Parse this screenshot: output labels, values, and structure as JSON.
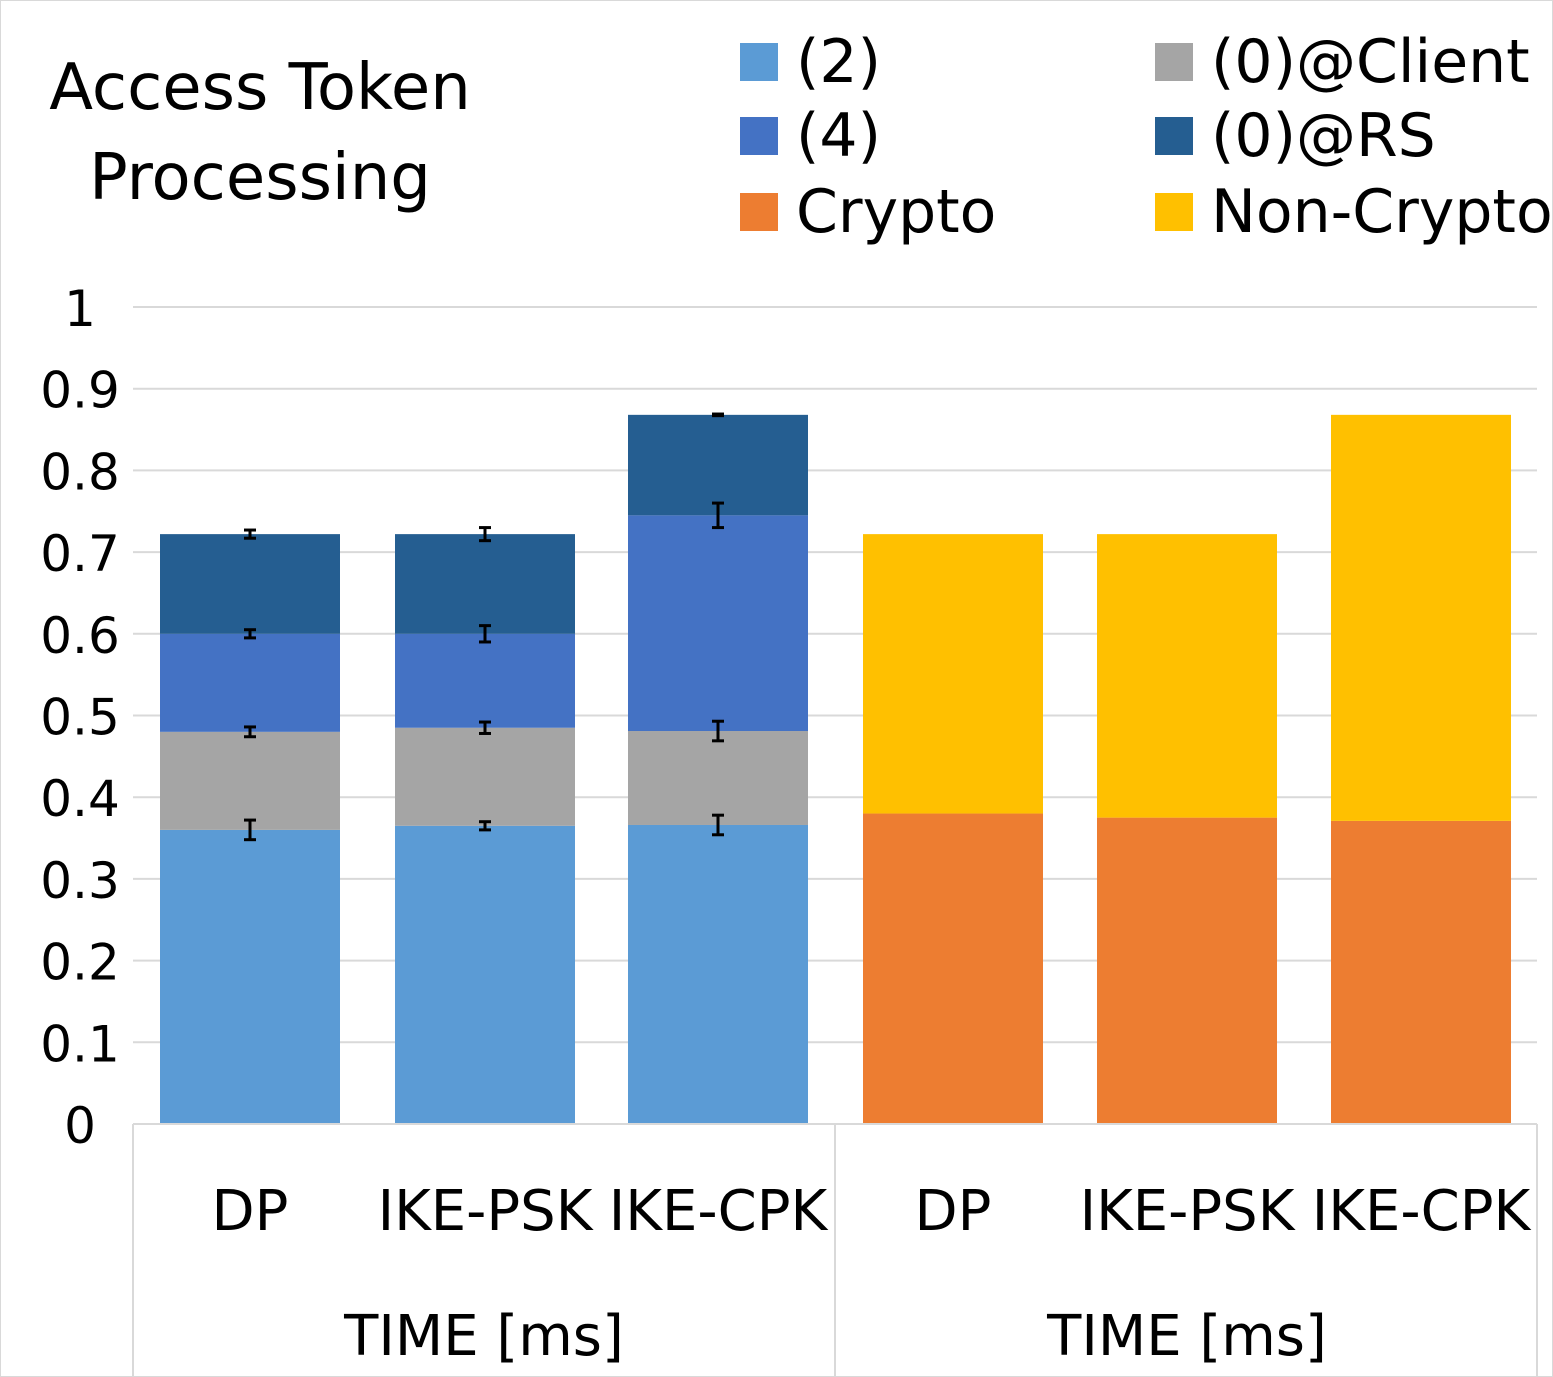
{
  "chart_data": {
    "type": "bar",
    "stacked": true,
    "title": [
      "Access Token",
      "Processing"
    ],
    "ylim": [
      0,
      1
    ],
    "yticks": [
      "0",
      "0.1",
      "0.2",
      "0.3",
      "0.4",
      "0.5",
      "0.6",
      "0.7",
      "0.8",
      "0.9",
      "1"
    ],
    "grid": true,
    "legend_position": "top-right",
    "legend": [
      {
        "key": "s2",
        "label": "(2)",
        "color": "#5b9bd5"
      },
      {
        "key": "c0",
        "label": "(0)@Client",
        "color": "#a5a5a5"
      },
      {
        "key": "s4",
        "label": "(4)",
        "color": "#4472c4"
      },
      {
        "key": "rs0",
        "label": "(0)@RS",
        "color": "#255e91"
      },
      {
        "key": "crypto",
        "label": "Crypto",
        "color": "#ed7d31"
      },
      {
        "key": "noncrypto",
        "label": "Non-Crypto",
        "color": "#ffc000"
      }
    ],
    "groups": [
      {
        "label": "TIME [ms]",
        "categories": [
          "DP",
          "IKE-PSK",
          "IKE-CPK"
        ],
        "series": [
          {
            "name": "(2)",
            "color": "#5b9bd5",
            "values": [
              0.36,
              0.365,
              0.366
            ],
            "errors": [
              0.012,
              0.005,
              0.012
            ]
          },
          {
            "name": "(0)@Client",
            "color": "#a5a5a5",
            "values": [
              0.12,
              0.12,
              0.115
            ],
            "errors": [
              0.006,
              0.007,
              0.012
            ]
          },
          {
            "name": "(4)",
            "color": "#4472c4",
            "values": [
              0.12,
              0.115,
              0.264
            ],
            "errors": [
              0.005,
              0.01,
              0.015
            ]
          },
          {
            "name": "(0)@RS",
            "color": "#255e91",
            "values": [
              0.122,
              0.122,
              0.123
            ],
            "errors": [
              0.005,
              0.008,
              0.001
            ]
          }
        ]
      },
      {
        "label": "TIME [ms]",
        "categories": [
          "DP",
          "IKE-PSK",
          "IKE-CPK"
        ],
        "series": [
          {
            "name": "Crypto",
            "color": "#ed7d31",
            "values": [
              0.38,
              0.375,
              0.371
            ]
          },
          {
            "name": "Non-Crypto",
            "color": "#ffc000",
            "values": [
              0.342,
              0.347,
              0.497
            ]
          }
        ]
      }
    ]
  }
}
